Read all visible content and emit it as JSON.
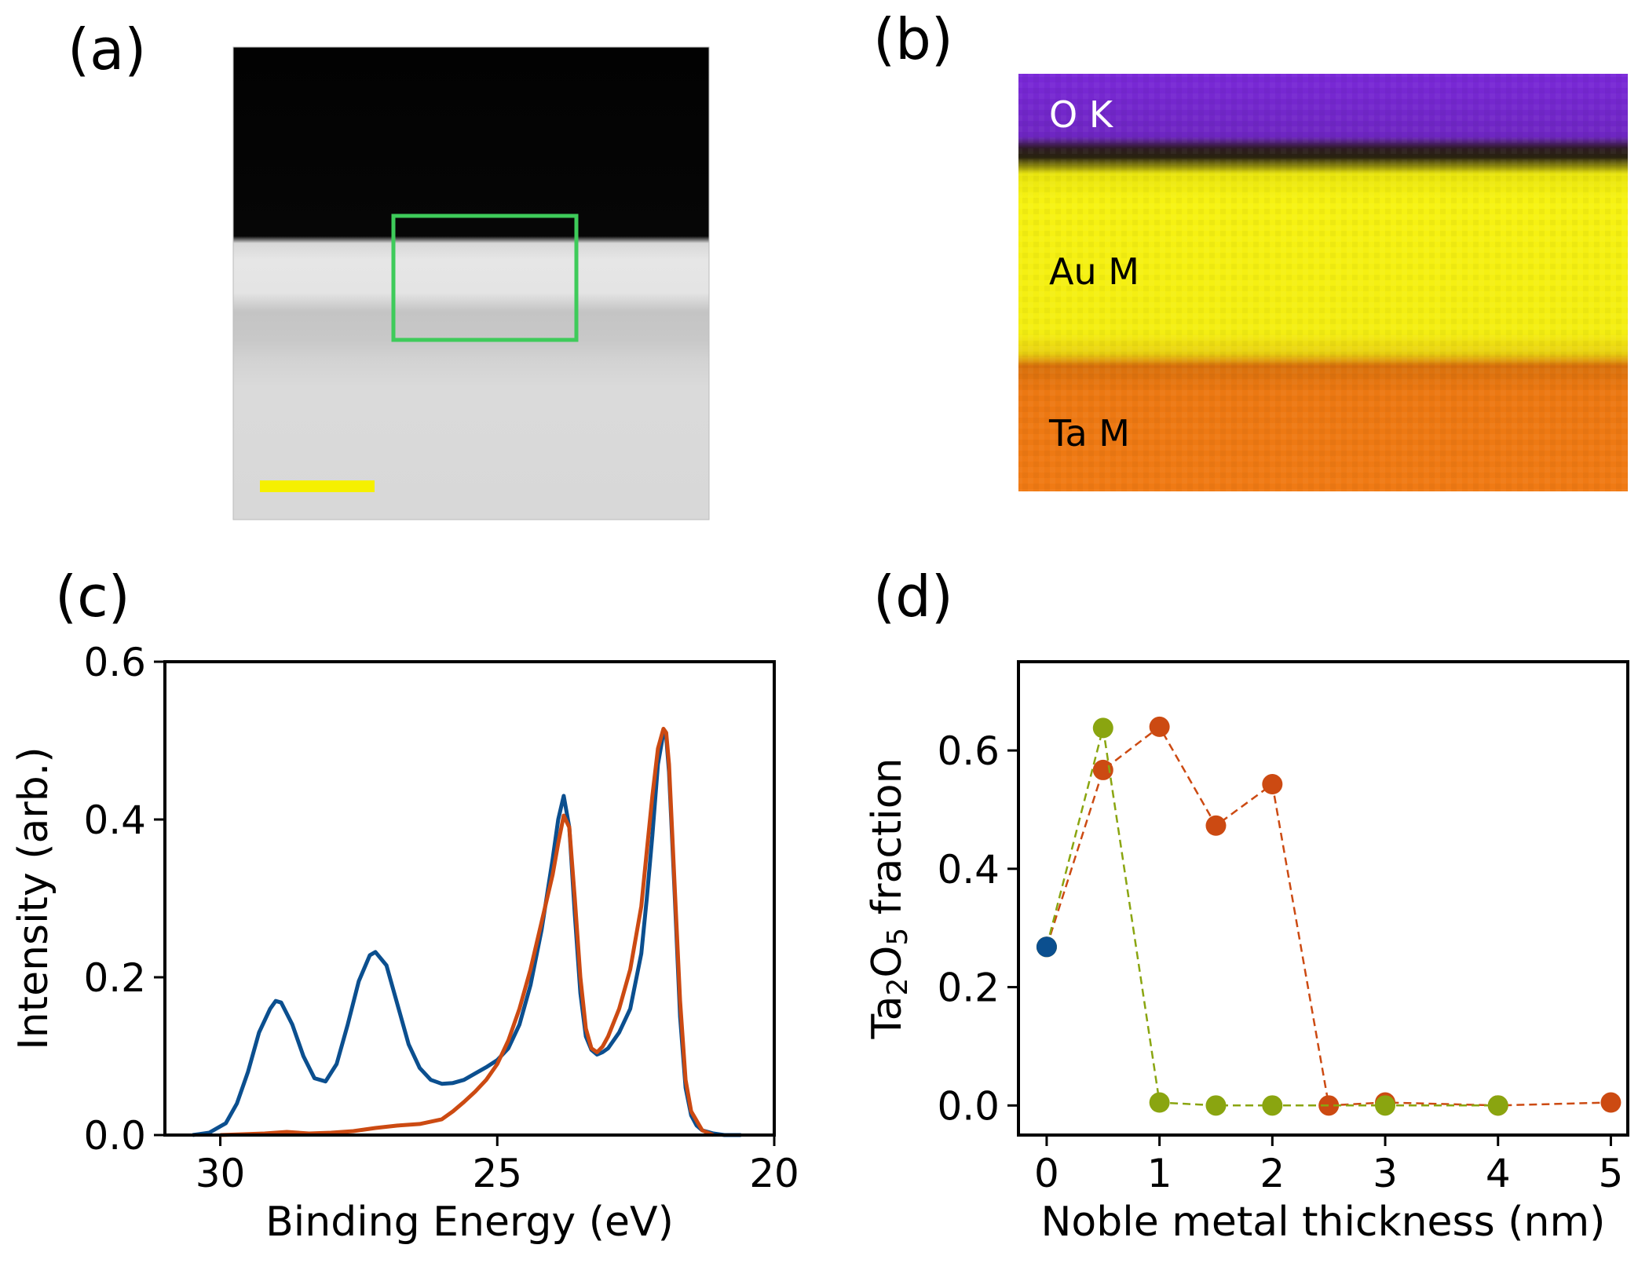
{
  "panels": {
    "a": {
      "label": "(a)"
    },
    "b": {
      "label": "(b)",
      "layers": [
        {
          "name": "O K",
          "color": "#7a28d8",
          "text_color": "#ffffff"
        },
        {
          "name": "Au M",
          "color": "#f2ee12",
          "text_color": "#000000"
        },
        {
          "name": "Ta M",
          "color": "#f07a14",
          "text_color": "#000000"
        }
      ]
    },
    "c": {
      "label": "(c)"
    },
    "d": {
      "label": "(d)"
    }
  },
  "chart_data": [
    {
      "type": "line",
      "panel": "c",
      "title": "",
      "xlabel": "Binding Energy (eV)",
      "ylabel": "Intensity (arb.)",
      "xlim": [
        31,
        20
      ],
      "ylim": [
        0,
        0.6
      ],
      "xticks": [
        30,
        25,
        20
      ],
      "yticks": [
        0.0,
        0.2,
        0.4,
        0.6
      ],
      "xtick_labels": [
        "30",
        "25",
        "20"
      ],
      "ytick_labels": [
        "0.0",
        "0.2",
        "0.4",
        "0.6"
      ],
      "series": [
        {
          "name": "blue",
          "color": "#0b4f8f",
          "x": [
            30.5,
            30.2,
            29.9,
            29.7,
            29.5,
            29.3,
            29.1,
            29.0,
            28.9,
            28.7,
            28.5,
            28.3,
            28.1,
            27.9,
            27.7,
            27.5,
            27.3,
            27.2,
            27.0,
            26.8,
            26.6,
            26.4,
            26.2,
            26.0,
            25.8,
            25.6,
            25.4,
            25.2,
            25.0,
            24.8,
            24.6,
            24.4,
            24.2,
            24.0,
            23.9,
            23.8,
            23.7,
            23.6,
            23.5,
            23.4,
            23.3,
            23.2,
            23.1,
            23.0,
            22.8,
            22.6,
            22.4,
            22.3,
            22.2,
            22.1,
            22.0,
            21.95,
            21.9,
            21.8,
            21.7,
            21.6,
            21.5,
            21.4,
            21.3,
            21.1,
            20.9,
            20.6
          ],
          "y": [
            0.0,
            0.003,
            0.015,
            0.04,
            0.08,
            0.13,
            0.16,
            0.17,
            0.168,
            0.14,
            0.1,
            0.072,
            0.068,
            0.09,
            0.14,
            0.195,
            0.228,
            0.232,
            0.215,
            0.165,
            0.115,
            0.085,
            0.07,
            0.065,
            0.066,
            0.07,
            0.078,
            0.086,
            0.095,
            0.11,
            0.14,
            0.19,
            0.26,
            0.35,
            0.4,
            0.43,
            0.39,
            0.28,
            0.18,
            0.125,
            0.108,
            0.102,
            0.105,
            0.11,
            0.13,
            0.16,
            0.23,
            0.3,
            0.38,
            0.47,
            0.51,
            0.505,
            0.46,
            0.31,
            0.15,
            0.06,
            0.025,
            0.012,
            0.006,
            0.002,
            0.0,
            0.0
          ]
        },
        {
          "name": "orange",
          "color": "#cc4a12",
          "x": [
            30.0,
            29.6,
            29.2,
            28.8,
            28.4,
            28.0,
            27.6,
            27.2,
            26.8,
            26.4,
            26.0,
            25.8,
            25.6,
            25.4,
            25.2,
            25.0,
            24.8,
            24.6,
            24.4,
            24.2,
            24.0,
            23.9,
            23.8,
            23.7,
            23.6,
            23.5,
            23.4,
            23.3,
            23.2,
            23.1,
            23.0,
            22.8,
            22.6,
            22.4,
            22.3,
            22.2,
            22.1,
            22.0,
            21.95,
            21.9,
            21.8,
            21.7,
            21.6,
            21.5,
            21.3,
            21.1
          ],
          "y": [
            0.0,
            0.001,
            0.002,
            0.004,
            0.002,
            0.003,
            0.005,
            0.009,
            0.012,
            0.014,
            0.02,
            0.03,
            0.042,
            0.055,
            0.07,
            0.09,
            0.12,
            0.16,
            0.21,
            0.27,
            0.33,
            0.37,
            0.405,
            0.39,
            0.3,
            0.2,
            0.135,
            0.11,
            0.105,
            0.112,
            0.125,
            0.16,
            0.21,
            0.29,
            0.36,
            0.43,
            0.49,
            0.515,
            0.51,
            0.47,
            0.32,
            0.17,
            0.07,
            0.03,
            0.006,
            0.0
          ]
        }
      ]
    },
    {
      "type": "scatter",
      "panel": "d",
      "title": "",
      "xlabel": "Noble metal thickness (nm)",
      "ylabel": "Ta2O5 fraction",
      "ylabel_base": "Ta",
      "ylabel_sub1": "2",
      "ylabel_mid": "O",
      "ylabel_sub2": "5",
      "ylabel_tail": " fraction",
      "xlim": [
        -0.25,
        5.15
      ],
      "ylim": [
        -0.05,
        0.75
      ],
      "xticks": [
        0,
        1,
        2,
        3,
        4,
        5
      ],
      "yticks": [
        0.0,
        0.2,
        0.4,
        0.6
      ],
      "xtick_labels": [
        "0",
        "1",
        "2",
        "3",
        "4",
        "5"
      ],
      "ytick_labels": [
        "0.0",
        "0.2",
        "0.4",
        "0.6"
      ],
      "series": [
        {
          "name": "orange",
          "color": "#cc4a12",
          "dashed": true,
          "x": [
            0,
            0.5,
            1,
            1.5,
            2,
            2.5,
            3,
            4,
            5
          ],
          "y": [
            0.268,
            0.567,
            0.64,
            0.473,
            0.543,
            0.0,
            0.005,
            0.0,
            0.005
          ]
        },
        {
          "name": "green",
          "color": "#8aa510",
          "dashed": true,
          "x": [
            0,
            0.5,
            1,
            1.5,
            2,
            3,
            4
          ],
          "y": [
            0.268,
            0.638,
            0.005,
            0.0,
            0.0,
            0.0,
            0.0
          ]
        },
        {
          "name": "blue",
          "color": "#0b4f8f",
          "dashed": false,
          "x": [
            0
          ],
          "y": [
            0.268
          ]
        }
      ]
    }
  ]
}
